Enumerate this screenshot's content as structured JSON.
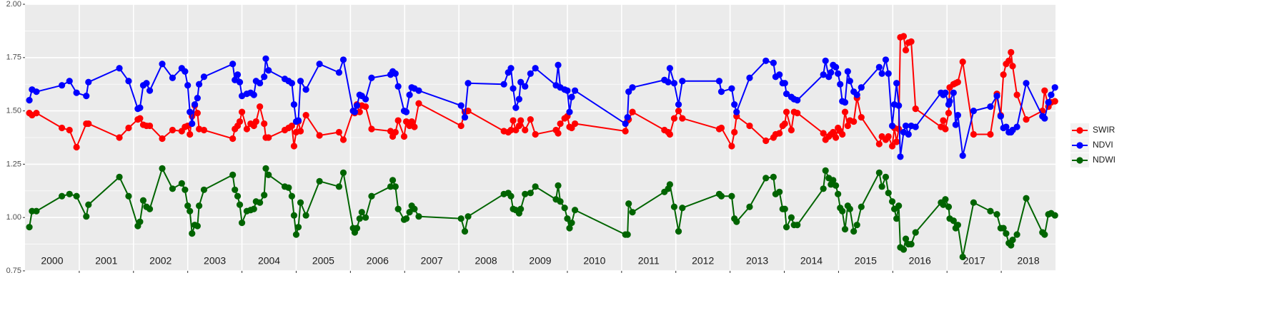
{
  "chart_data": {
    "type": "line",
    "x": [
      2000.08,
      2000.13,
      2000.21,
      2000.68,
      2000.82,
      2000.95,
      2001.13,
      2001.17,
      2001.74,
      2001.91,
      2002.08,
      2002.12,
      2002.18,
      2002.24,
      2002.3,
      2002.53,
      2002.72,
      2002.89,
      2002.95,
      2003.0,
      2003.04,
      2003.08,
      2003.13,
      2003.18,
      2003.21,
      2003.3,
      2003.83,
      2003.87,
      2003.92,
      2003.96,
      2004.0,
      2004.09,
      2004.16,
      2004.22,
      2004.26,
      2004.33,
      2004.41,
      2004.44,
      2004.49,
      2004.79,
      2004.86,
      2004.92,
      2004.96,
      2005.0,
      2005.04,
      2005.08,
      2005.18,
      2005.43,
      2005.79,
      2005.87,
      2006.05,
      2006.08,
      2006.12,
      2006.17,
      2006.21,
      2006.28,
      2006.39,
      2006.74,
      2006.78,
      2006.83,
      2006.88,
      2006.99,
      2007.03,
      2007.09,
      2007.13,
      2007.18,
      2007.26,
      2008.04,
      2008.11,
      2008.17,
      2008.83,
      2008.91,
      2008.96,
      2009.0,
      2009.05,
      2009.11,
      2009.14,
      2009.22,
      2009.32,
      2009.41,
      2009.79,
      2009.83,
      2009.87,
      2009.95,
      2010.0,
      2010.04,
      2010.08,
      2010.14,
      2011.07,
      2011.11,
      2011.13,
      2011.2,
      2011.79,
      2011.86,
      2011.89,
      2011.97,
      2012.05,
      2012.12,
      2012.8,
      2012.84,
      2013.03,
      2013.08,
      2013.12,
      2013.36,
      2013.66,
      2013.8,
      2013.84,
      2013.91,
      2013.97,
      2014.01,
      2014.04,
      2014.13,
      2014.18,
      2014.24,
      2014.72,
      2014.76,
      2014.82,
      2014.86,
      2014.9,
      2014.95,
      2014.99,
      2015.03,
      2015.07,
      2015.12,
      2015.17,
      2015.21,
      2015.28,
      2015.34,
      2015.42,
      2015.75,
      2015.8,
      2015.87,
      2015.92,
      2015.99,
      2016.03,
      2016.07,
      2016.11,
      2016.14,
      2016.2,
      2016.24,
      2016.29,
      2016.34,
      2016.42,
      2016.89,
      2016.93,
      2016.97,
      2017.03,
      2017.05,
      2017.12,
      2017.16,
      2017.2,
      2017.29,
      2017.49,
      2017.8,
      2017.92,
      2017.99,
      2018.04,
      2018.09,
      2018.14,
      2018.18,
      2018.21,
      2018.29,
      2018.46,
      2018.76,
      2018.8,
      2018.87,
      2018.92,
      2018.99
    ],
    "series": [
      {
        "name": "SWIR",
        "color": "#ff0000",
        "values": [
          1.49,
          1.48,
          1.49,
          1.42,
          1.41,
          1.33,
          1.44,
          1.44,
          1.375,
          1.42,
          1.46,
          1.465,
          1.435,
          1.43,
          1.43,
          1.37,
          1.41,
          1.405,
          1.425,
          1.43,
          1.39,
          1.475,
          1.525,
          1.49,
          1.415,
          1.41,
          1.37,
          1.415,
          1.43,
          1.45,
          1.495,
          1.415,
          1.44,
          1.43,
          1.45,
          1.52,
          1.44,
          1.375,
          1.375,
          1.41,
          1.42,
          1.43,
          1.335,
          1.4,
          1.45,
          1.405,
          1.48,
          1.385,
          1.4,
          1.365,
          1.5,
          1.49,
          1.53,
          1.495,
          1.525,
          1.52,
          1.415,
          1.405,
          1.38,
          1.4,
          1.455,
          1.38,
          1.45,
          1.43,
          1.45,
          1.425,
          1.535,
          1.43,
          1.495,
          1.5,
          1.405,
          1.4,
          1.41,
          1.455,
          1.41,
          1.43,
          1.455,
          1.41,
          1.46,
          1.39,
          1.41,
          1.395,
          1.44,
          1.465,
          1.475,
          1.425,
          1.42,
          1.44,
          1.405,
          1.455,
          1.46,
          1.495,
          1.41,
          1.4,
          1.39,
          1.465,
          1.5,
          1.465,
          1.415,
          1.42,
          1.335,
          1.4,
          1.475,
          1.43,
          1.36,
          1.375,
          1.39,
          1.395,
          1.43,
          1.44,
          1.495,
          1.41,
          1.495,
          1.49,
          1.395,
          1.365,
          1.38,
          1.39,
          1.4,
          1.375,
          1.42,
          1.405,
          1.39,
          1.495,
          1.43,
          1.455,
          1.45,
          1.56,
          1.47,
          1.345,
          1.38,
          1.365,
          1.38,
          1.335,
          1.42,
          1.355,
          1.415,
          1.845,
          1.85,
          1.785,
          1.82,
          1.825,
          1.51,
          1.425,
          1.455,
          1.415,
          1.49,
          1.61,
          1.625,
          1.63,
          1.635,
          1.73,
          1.39,
          1.39,
          1.58,
          1.48,
          1.67,
          1.72,
          1.735,
          1.775,
          1.71,
          1.575,
          1.46,
          1.5,
          1.595,
          1.52,
          1.54,
          1.545
        ]
      },
      {
        "name": "NDVI",
        "color": "#0000ff",
        "values": [
          1.55,
          1.6,
          1.59,
          1.62,
          1.64,
          1.585,
          1.57,
          1.635,
          1.7,
          1.64,
          1.51,
          1.515,
          1.62,
          1.63,
          1.595,
          1.72,
          1.655,
          1.7,
          1.685,
          1.62,
          1.495,
          1.44,
          1.53,
          1.56,
          1.625,
          1.66,
          1.72,
          1.645,
          1.67,
          1.635,
          1.57,
          1.58,
          1.585,
          1.575,
          1.64,
          1.63,
          1.66,
          1.745,
          1.69,
          1.65,
          1.64,
          1.63,
          1.53,
          1.45,
          1.455,
          1.64,
          1.6,
          1.72,
          1.68,
          1.74,
          1.5,
          1.495,
          1.525,
          1.575,
          1.57,
          1.555,
          1.655,
          1.67,
          1.685,
          1.675,
          1.615,
          1.5,
          1.495,
          1.575,
          1.61,
          1.605,
          1.595,
          1.525,
          1.47,
          1.63,
          1.625,
          1.68,
          1.7,
          1.605,
          1.515,
          1.555,
          1.635,
          1.615,
          1.675,
          1.7,
          1.62,
          1.715,
          1.61,
          1.6,
          1.595,
          1.495,
          1.565,
          1.595,
          1.44,
          1.47,
          1.59,
          1.61,
          1.645,
          1.635,
          1.7,
          1.63,
          1.53,
          1.64,
          1.64,
          1.59,
          1.605,
          1.53,
          1.495,
          1.655,
          1.735,
          1.725,
          1.66,
          1.67,
          1.63,
          1.63,
          1.58,
          1.565,
          1.555,
          1.55,
          1.67,
          1.735,
          1.66,
          1.68,
          1.715,
          1.705,
          1.675,
          1.625,
          1.545,
          1.54,
          1.685,
          1.64,
          1.59,
          1.575,
          1.61,
          1.705,
          1.675,
          1.74,
          1.675,
          1.43,
          1.53,
          1.63,
          1.525,
          1.285,
          1.4,
          1.43,
          1.39,
          1.43,
          1.425,
          1.585,
          1.575,
          1.585,
          1.53,
          1.545,
          1.585,
          1.435,
          1.48,
          1.29,
          1.5,
          1.52,
          1.57,
          1.475,
          1.42,
          1.425,
          1.4,
          1.4,
          1.41,
          1.425,
          1.63,
          1.475,
          1.465,
          1.54,
          1.575,
          1.61
        ]
      },
      {
        "name": "NDWI",
        "color": "#006400",
        "values": [
          0.955,
          1.03,
          1.03,
          1.1,
          1.11,
          1.1,
          1.005,
          1.06,
          1.19,
          1.1,
          0.96,
          0.98,
          1.08,
          1.05,
          1.04,
          1.23,
          1.135,
          1.16,
          1.13,
          1.055,
          1.03,
          0.925,
          0.965,
          0.96,
          1.055,
          1.13,
          1.2,
          1.13,
          1.1,
          1.06,
          0.975,
          1.03,
          1.035,
          1.04,
          1.075,
          1.07,
          1.105,
          1.23,
          1.2,
          1.145,
          1.14,
          1.1,
          1.01,
          0.92,
          0.955,
          1.07,
          1.01,
          1.17,
          1.145,
          1.21,
          0.95,
          0.93,
          0.95,
          0.995,
          1.025,
          1.0,
          1.1,
          1.145,
          1.175,
          1.145,
          1.04,
          0.99,
          0.995,
          1.025,
          1.055,
          1.04,
          1.005,
          0.995,
          0.935,
          1.005,
          1.11,
          1.115,
          1.1,
          1.04,
          1.035,
          1.02,
          1.04,
          1.11,
          1.115,
          1.145,
          1.085,
          1.15,
          1.075,
          1.045,
          0.995,
          0.95,
          0.975,
          1.035,
          0.92,
          0.92,
          1.065,
          1.025,
          1.12,
          1.135,
          1.155,
          1.05,
          0.935,
          1.045,
          1.11,
          1.1,
          1.1,
          0.995,
          0.98,
          1.05,
          1.185,
          1.19,
          1.11,
          1.12,
          1.04,
          1.04,
          0.955,
          1.0,
          0.965,
          0.965,
          1.135,
          1.22,
          1.185,
          1.155,
          1.175,
          1.15,
          1.11,
          1.045,
          1.03,
          0.945,
          1.055,
          1.04,
          0.935,
          0.965,
          1.05,
          1.21,
          1.145,
          1.19,
          1.115,
          1.075,
          1.04,
          0.995,
          1.055,
          0.86,
          0.85,
          0.9,
          0.875,
          0.875,
          0.93,
          1.07,
          1.06,
          1.085,
          1.05,
          0.995,
          0.985,
          0.95,
          0.965,
          0.815,
          1.07,
          1.03,
          1.015,
          0.95,
          0.95,
          0.925,
          0.88,
          0.87,
          0.895,
          0.92,
          1.09,
          0.93,
          0.92,
          1.015,
          1.02,
          1.01
        ]
      }
    ],
    "xlim": [
      2000,
      2019
    ],
    "xticks": [
      2001,
      2002,
      2003,
      2004,
      2005,
      2006,
      2007,
      2008,
      2009,
      2010,
      2011,
      2012,
      2013,
      2014,
      2015,
      2016,
      2017,
      2018
    ],
    "ylim": [
      0.75,
      2.0
    ],
    "yticks": [
      0.75,
      {
        "value": 1,
        "label": "1.00"
      },
      1.25,
      {
        "value": 1.5,
        "label": "1.50"
      },
      1.75,
      {
        "value": 2,
        "label": "2.00"
      }
    ],
    "year_labels": [
      "2000",
      "2001",
      "2002",
      "2003",
      "2004",
      "2005",
      "2006",
      "2007",
      "2008",
      "2009",
      "2010",
      "2011",
      "2012",
      "2013",
      "2014",
      "2015",
      "2016",
      "2017",
      "2018"
    ],
    "grid": true,
    "legend": "right"
  }
}
